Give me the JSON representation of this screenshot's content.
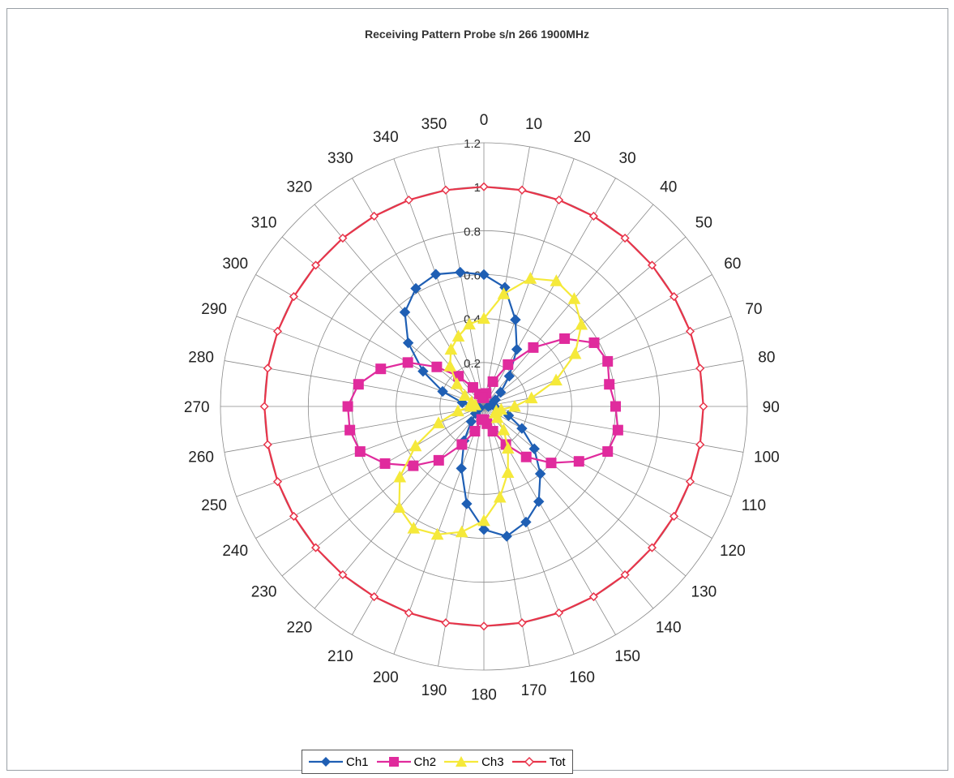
{
  "chart_data": {
    "type": "polar-line",
    "title": "Receiving Pattern Probe s/n 266 1900MHz",
    "angles": [
      0,
      10,
      20,
      30,
      40,
      50,
      60,
      70,
      80,
      90,
      100,
      110,
      120,
      130,
      140,
      150,
      160,
      170,
      180,
      190,
      200,
      210,
      220,
      230,
      240,
      250,
      260,
      270,
      280,
      290,
      300,
      310,
      320,
      330,
      340,
      350
    ],
    "angle_tick_labels": [
      "0",
      "10",
      "20",
      "30",
      "40",
      "50",
      "60",
      "70",
      "80",
      "90",
      "100",
      "110",
      "120",
      "130",
      "140",
      "150",
      "160",
      "170",
      "180",
      "190",
      "200",
      "210",
      "220",
      "230",
      "240",
      "250",
      "260",
      "270",
      "280",
      "290",
      "300",
      "310",
      "320",
      "330",
      "340",
      "350"
    ],
    "radial_range": [
      0,
      1.2
    ],
    "radial_ticks": [
      "0",
      "0.2",
      "0.4",
      "0.6",
      "0.8",
      "1",
      "1.2"
    ],
    "grid": true,
    "legend_position": "bottom",
    "series": [
      {
        "name": "Ch1",
        "color": "#1f5fb4",
        "marker": "diamond",
        "values": [
          0.6,
          0.55,
          0.42,
          0.3,
          0.18,
          0.1,
          0.06,
          0.04,
          0.03,
          0.02,
          0.06,
          0.12,
          0.2,
          0.3,
          0.4,
          0.5,
          0.56,
          0.6,
          0.56,
          0.45,
          0.3,
          0.18,
          0.09,
          0.05,
          0.03,
          0.02,
          0.03,
          0.06,
          0.1,
          0.2,
          0.32,
          0.45,
          0.56,
          0.62,
          0.64,
          0.62
        ]
      },
      {
        "name": "Ch2",
        "color": "#e02b9d",
        "marker": "square",
        "values": [
          0.04,
          0.06,
          0.12,
          0.22,
          0.35,
          0.48,
          0.58,
          0.6,
          0.58,
          0.6,
          0.62,
          0.6,
          0.5,
          0.4,
          0.3,
          0.2,
          0.12,
          0.08,
          0.06,
          0.06,
          0.12,
          0.2,
          0.32,
          0.42,
          0.52,
          0.6,
          0.62,
          0.62,
          0.58,
          0.5,
          0.4,
          0.28,
          0.18,
          0.1,
          0.06,
          0.04
        ]
      },
      {
        "name": "Ch3",
        "color": "#f5e93a",
        "marker": "triangle",
        "values": [
          0.4,
          0.52,
          0.62,
          0.66,
          0.64,
          0.58,
          0.48,
          0.35,
          0.22,
          0.14,
          0.08,
          0.06,
          0.06,
          0.08,
          0.14,
          0.22,
          0.32,
          0.42,
          0.52,
          0.58,
          0.62,
          0.64,
          0.6,
          0.5,
          0.36,
          0.22,
          0.12,
          0.06,
          0.04,
          0.06,
          0.1,
          0.16,
          0.24,
          0.3,
          0.34,
          0.38
        ]
      },
      {
        "name": "Tot",
        "color": "#e8344a",
        "marker": "circle",
        "values": [
          1.0,
          1.0,
          1.0,
          1.0,
          1.0,
          1.0,
          1.0,
          1.0,
          1.0,
          1.0,
          1.0,
          1.0,
          1.0,
          1.0,
          1.0,
          1.0,
          1.0,
          1.0,
          1.0,
          1.0,
          1.0,
          1.0,
          1.0,
          1.0,
          1.0,
          1.0,
          1.0,
          1.0,
          1.0,
          1.0,
          1.0,
          1.0,
          1.0,
          1.0,
          1.0,
          1.0
        ]
      }
    ]
  }
}
